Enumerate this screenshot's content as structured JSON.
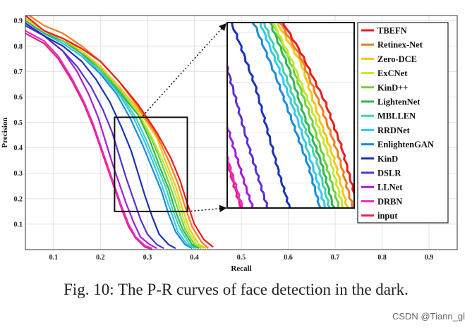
{
  "chart_data": {
    "type": "line",
    "title": "",
    "xlabel": "Recall",
    "ylabel": "Precision",
    "xlim": [
      0.04,
      0.96
    ],
    "ylim": [
      0.0,
      0.92
    ],
    "xticks": [
      "0.1",
      "0.2",
      "0.3",
      "0.4",
      "0.5",
      "0.6",
      "0.7",
      "0.8",
      "0.9"
    ],
    "yticks": [
      "0.1",
      "0.2",
      "0.3",
      "0.4",
      "0.5",
      "0.6",
      "0.7",
      "0.8",
      "0.9"
    ],
    "grid": true,
    "legend_position": "right",
    "series": [
      {
        "name": "TBEFN",
        "color": "#ee1c1c",
        "points": [
          [
            0.04,
            0.92
          ],
          [
            0.08,
            0.86
          ],
          [
            0.12,
            0.83
          ],
          [
            0.16,
            0.79
          ],
          [
            0.2,
            0.74
          ],
          [
            0.24,
            0.66
          ],
          [
            0.28,
            0.57
          ],
          [
            0.32,
            0.46
          ],
          [
            0.35,
            0.36
          ],
          [
            0.37,
            0.27
          ],
          [
            0.385,
            0.18
          ],
          [
            0.4,
            0.1
          ],
          [
            0.42,
            0.04
          ],
          [
            0.44,
            0.01
          ]
        ]
      },
      {
        "name": "Retinex-Net",
        "color": "#f57c1f",
        "points": [
          [
            0.04,
            0.93
          ],
          [
            0.08,
            0.88
          ],
          [
            0.12,
            0.85
          ],
          [
            0.16,
            0.8
          ],
          [
            0.2,
            0.74
          ],
          [
            0.24,
            0.66
          ],
          [
            0.28,
            0.56
          ],
          [
            0.32,
            0.45
          ],
          [
            0.345,
            0.35
          ],
          [
            0.365,
            0.26
          ],
          [
            0.38,
            0.17
          ],
          [
            0.395,
            0.09
          ],
          [
            0.415,
            0.03
          ],
          [
            0.43,
            0.005
          ]
        ]
      },
      {
        "name": "Zero-DCE",
        "color": "#f5c518",
        "points": [
          [
            0.04,
            0.91
          ],
          [
            0.08,
            0.86
          ],
          [
            0.12,
            0.83
          ],
          [
            0.16,
            0.78
          ],
          [
            0.2,
            0.72
          ],
          [
            0.24,
            0.64
          ],
          [
            0.28,
            0.55
          ],
          [
            0.32,
            0.44
          ],
          [
            0.34,
            0.34
          ],
          [
            0.36,
            0.25
          ],
          [
            0.375,
            0.16
          ],
          [
            0.39,
            0.08
          ],
          [
            0.41,
            0.02
          ],
          [
            0.425,
            0.005
          ]
        ]
      },
      {
        "name": "ExCNet",
        "color": "#c6e633",
        "points": [
          [
            0.04,
            0.91
          ],
          [
            0.08,
            0.86
          ],
          [
            0.12,
            0.83
          ],
          [
            0.16,
            0.78
          ],
          [
            0.2,
            0.72
          ],
          [
            0.24,
            0.64
          ],
          [
            0.28,
            0.54
          ],
          [
            0.31,
            0.44
          ],
          [
            0.335,
            0.34
          ],
          [
            0.355,
            0.25
          ],
          [
            0.37,
            0.16
          ],
          [
            0.385,
            0.08
          ],
          [
            0.405,
            0.02
          ],
          [
            0.42,
            0.005
          ]
        ]
      },
      {
        "name": "KinD++",
        "color": "#6cd43a",
        "points": [
          [
            0.04,
            0.91
          ],
          [
            0.08,
            0.86
          ],
          [
            0.12,
            0.82
          ],
          [
            0.16,
            0.78
          ],
          [
            0.2,
            0.71
          ],
          [
            0.24,
            0.63
          ],
          [
            0.28,
            0.54
          ],
          [
            0.31,
            0.43
          ],
          [
            0.33,
            0.34
          ],
          [
            0.35,
            0.24
          ],
          [
            0.365,
            0.16
          ],
          [
            0.38,
            0.08
          ],
          [
            0.4,
            0.02
          ],
          [
            0.415,
            0.005
          ]
        ]
      },
      {
        "name": "LightenNet",
        "color": "#30b64a",
        "points": [
          [
            0.04,
            0.9
          ],
          [
            0.08,
            0.85
          ],
          [
            0.12,
            0.82
          ],
          [
            0.16,
            0.77
          ],
          [
            0.2,
            0.71
          ],
          [
            0.24,
            0.62
          ],
          [
            0.28,
            0.53
          ],
          [
            0.305,
            0.43
          ],
          [
            0.325,
            0.33
          ],
          [
            0.345,
            0.24
          ],
          [
            0.36,
            0.15
          ],
          [
            0.375,
            0.08
          ],
          [
            0.395,
            0.02
          ],
          [
            0.41,
            0.005
          ]
        ]
      },
      {
        "name": "MBLLEN",
        "color": "#3fd3b0",
        "points": [
          [
            0.04,
            0.9
          ],
          [
            0.08,
            0.85
          ],
          [
            0.12,
            0.82
          ],
          [
            0.16,
            0.77
          ],
          [
            0.2,
            0.7
          ],
          [
            0.24,
            0.62
          ],
          [
            0.275,
            0.52
          ],
          [
            0.3,
            0.42
          ],
          [
            0.32,
            0.33
          ],
          [
            0.34,
            0.24
          ],
          [
            0.355,
            0.15
          ],
          [
            0.37,
            0.08
          ],
          [
            0.39,
            0.02
          ],
          [
            0.405,
            0.005
          ]
        ]
      },
      {
        "name": "RRDNet",
        "color": "#35c8ee",
        "points": [
          [
            0.04,
            0.9
          ],
          [
            0.08,
            0.85
          ],
          [
            0.12,
            0.81
          ],
          [
            0.16,
            0.76
          ],
          [
            0.2,
            0.7
          ],
          [
            0.24,
            0.61
          ],
          [
            0.27,
            0.52
          ],
          [
            0.295,
            0.42
          ],
          [
            0.315,
            0.33
          ],
          [
            0.335,
            0.23
          ],
          [
            0.35,
            0.15
          ],
          [
            0.365,
            0.07
          ],
          [
            0.385,
            0.02
          ],
          [
            0.4,
            0.005
          ]
        ]
      },
      {
        "name": "EnlightenGAN",
        "color": "#1a8cd8",
        "points": [
          [
            0.04,
            0.9
          ],
          [
            0.08,
            0.85
          ],
          [
            0.12,
            0.81
          ],
          [
            0.16,
            0.76
          ],
          [
            0.2,
            0.69
          ],
          [
            0.235,
            0.61
          ],
          [
            0.265,
            0.51
          ],
          [
            0.29,
            0.41
          ],
          [
            0.31,
            0.32
          ],
          [
            0.33,
            0.23
          ],
          [
            0.345,
            0.14
          ],
          [
            0.36,
            0.07
          ],
          [
            0.38,
            0.02
          ],
          [
            0.395,
            0.005
          ]
        ]
      },
      {
        "name": "KinD",
        "color": "#1a33b8",
        "points": [
          [
            0.04,
            0.89
          ],
          [
            0.08,
            0.84
          ],
          [
            0.12,
            0.8
          ],
          [
            0.16,
            0.74
          ],
          [
            0.19,
            0.67
          ],
          [
            0.22,
            0.58
          ],
          [
            0.245,
            0.48
          ],
          [
            0.265,
            0.39
          ],
          [
            0.28,
            0.3
          ],
          [
            0.295,
            0.21
          ],
          [
            0.31,
            0.13
          ],
          [
            0.325,
            0.06
          ],
          [
            0.345,
            0.02
          ],
          [
            0.36,
            0.005
          ]
        ]
      },
      {
        "name": "DSLR",
        "color": "#5a2fd6",
        "points": [
          [
            0.04,
            0.88
          ],
          [
            0.08,
            0.84
          ],
          [
            0.12,
            0.78
          ],
          [
            0.15,
            0.72
          ],
          [
            0.18,
            0.64
          ],
          [
            0.205,
            0.55
          ],
          [
            0.225,
            0.46
          ],
          [
            0.24,
            0.37
          ],
          [
            0.255,
            0.28
          ],
          [
            0.27,
            0.2
          ],
          [
            0.285,
            0.12
          ],
          [
            0.3,
            0.06
          ],
          [
            0.32,
            0.02
          ],
          [
            0.335,
            0.005
          ]
        ]
      },
      {
        "name": "LLNet",
        "color": "#a21ed8",
        "points": [
          [
            0.04,
            0.89
          ],
          [
            0.08,
            0.84
          ],
          [
            0.12,
            0.78
          ],
          [
            0.15,
            0.7
          ],
          [
            0.175,
            0.61
          ],
          [
            0.195,
            0.52
          ],
          [
            0.21,
            0.43
          ],
          [
            0.225,
            0.34
          ],
          [
            0.24,
            0.26
          ],
          [
            0.255,
            0.18
          ],
          [
            0.27,
            0.11
          ],
          [
            0.285,
            0.05
          ],
          [
            0.305,
            0.02
          ],
          [
            0.32,
            0.005
          ]
        ]
      },
      {
        "name": "DRBN",
        "color": "#e828c8",
        "points": [
          [
            0.04,
            0.86
          ],
          [
            0.08,
            0.82
          ],
          [
            0.11,
            0.76
          ],
          [
            0.14,
            0.67
          ],
          [
            0.165,
            0.58
          ],
          [
            0.185,
            0.49
          ],
          [
            0.2,
            0.41
          ],
          [
            0.215,
            0.33
          ],
          [
            0.23,
            0.25
          ],
          [
            0.245,
            0.17
          ],
          [
            0.26,
            0.1
          ],
          [
            0.275,
            0.05
          ],
          [
            0.295,
            0.015
          ],
          [
            0.31,
            0.005
          ]
        ]
      },
      {
        "name": "input",
        "color": "#ee1f6e",
        "points": [
          [
            0.04,
            0.85
          ],
          [
            0.08,
            0.81
          ],
          [
            0.11,
            0.75
          ],
          [
            0.14,
            0.66
          ],
          [
            0.165,
            0.57
          ],
          [
            0.185,
            0.48
          ],
          [
            0.2,
            0.4
          ],
          [
            0.215,
            0.32
          ],
          [
            0.23,
            0.24
          ],
          [
            0.245,
            0.16
          ],
          [
            0.26,
            0.09
          ],
          [
            0.275,
            0.045
          ],
          [
            0.295,
            0.01
          ],
          [
            0.31,
            0.002
          ]
        ]
      }
    ],
    "zoom_source_box": {
      "x": [
        0.23,
        0.385
      ],
      "y": [
        0.15,
        0.52
      ]
    }
  },
  "caption": "Fig. 10: The P-R curves of face detection in the dark.",
  "watermark": "CSDN @Tiann_gl"
}
